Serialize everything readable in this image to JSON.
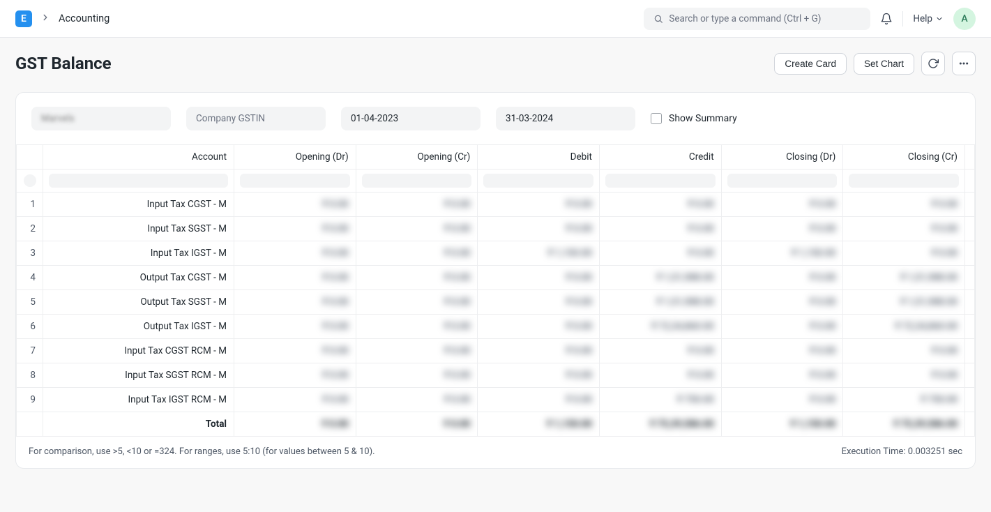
{
  "header": {
    "logo_letter": "E",
    "breadcrumb": "Accounting",
    "search_placeholder": "Search or type a command (Ctrl + G)",
    "help_label": "Help",
    "avatar_letter": "A"
  },
  "page": {
    "title": "GST Balance",
    "actions": {
      "create_card": "Create Card",
      "set_chart": "Set Chart"
    }
  },
  "filters": {
    "company_value": "Marvels",
    "gstin_placeholder": "Company GSTIN",
    "from_date": "01-04-2023",
    "to_date": "31-03-2024",
    "show_summary_label": "Show Summary",
    "show_summary_checked": false
  },
  "report": {
    "columns": [
      "Account",
      "Opening (Dr)",
      "Opening (Cr)",
      "Debit",
      "Credit",
      "Closing (Dr)",
      "Closing (Cr)"
    ],
    "rows": [
      {
        "n": "1",
        "account": "Input Tax CGST - M",
        "vals": [
          "₹ 0.00",
          "₹ 0.00",
          "₹ 0.00",
          "₹ 0.00",
          "₹ 0.00",
          "₹ 0.00"
        ]
      },
      {
        "n": "2",
        "account": "Input Tax SGST - M",
        "vals": [
          "₹ 0.00",
          "₹ 0.00",
          "₹ 0.00",
          "₹ 0.00",
          "₹ 0.00",
          "₹ 0.00"
        ]
      },
      {
        "n": "3",
        "account": "Input Tax IGST - M",
        "vals": [
          "₹ 0.00",
          "₹ 0.00",
          "₹ 1,150.00",
          "₹ 0.00",
          "₹ 1,150.00",
          "₹ 0.00"
        ]
      },
      {
        "n": "4",
        "account": "Output Tax CGST - M",
        "vals": [
          "₹ 0.00",
          "₹ 0.00",
          "₹ 0.00",
          "₹ 1,51,988.00",
          "₹ 0.00",
          "₹ 1,51,988.00"
        ]
      },
      {
        "n": "5",
        "account": "Output Tax SGST - M",
        "vals": [
          "₹ 0.00",
          "₹ 0.00",
          "₹ 0.00",
          "₹ 1,51,988.00",
          "₹ 0.00",
          "₹ 1,51,988.00"
        ]
      },
      {
        "n": "6",
        "account": "Output Tax IGST - M",
        "vals": [
          "₹ 0.00",
          "₹ 0.00",
          "₹ 0.00",
          "₹ 72,34,860.00",
          "₹ 0.00",
          "₹ 72,34,860.00"
        ]
      },
      {
        "n": "7",
        "account": "Input Tax CGST RCM - M",
        "vals": [
          "₹ 0.00",
          "₹ 0.00",
          "₹ 0.00",
          "₹ 0.00",
          "₹ 0.00",
          "₹ 0.00"
        ]
      },
      {
        "n": "8",
        "account": "Input Tax SGST RCM - M",
        "vals": [
          "₹ 0.00",
          "₹ 0.00",
          "₹ 0.00",
          "₹ 0.00",
          "₹ 0.00",
          "₹ 0.00"
        ]
      },
      {
        "n": "9",
        "account": "Input Tax IGST RCM - M",
        "vals": [
          "₹ 0.00",
          "₹ 0.00",
          "₹ 0.00",
          "₹ 750.00",
          "₹ 0.00",
          "₹ 750.00"
        ]
      }
    ],
    "total_label": "Total",
    "totals": [
      "₹ 0.00",
      "₹ 0.00",
      "₹ 1,150.00",
      "₹ 75,39,586.00",
      "₹ 1,150.00",
      "₹ 75,39,586.00"
    ]
  },
  "footer": {
    "hint": "For comparison, use >5, <10 or =324. For ranges, use 5:10 (for values between 5 & 10).",
    "exec_time": "Execution Time: 0.003251 sec"
  }
}
